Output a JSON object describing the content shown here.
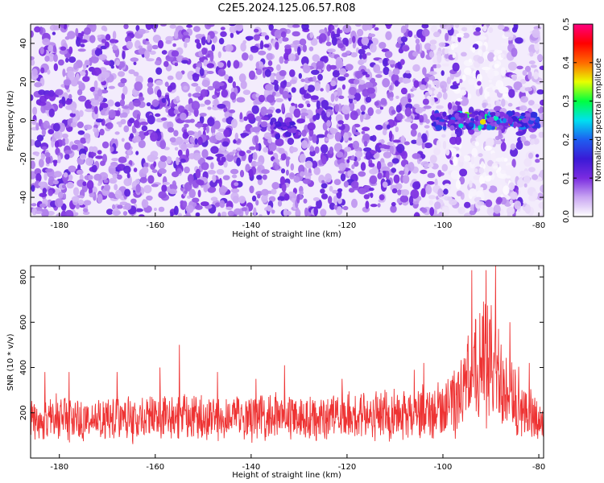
{
  "title": "C2E5.2024.125.06.57.R08",
  "chart_data": [
    {
      "type": "heatmap",
      "xlabel": "Height of straight line (km)",
      "ylabel": "Frequency (Hz)",
      "xlim": [
        -186,
        -79
      ],
      "ylim": [
        -50,
        50
      ],
      "x_ticks": [
        -180,
        -160,
        -140,
        -120,
        -100,
        -80
      ],
      "y_ticks": [
        -40,
        -20,
        0,
        20,
        40
      ],
      "x_tick_labels": [
        "-180",
        "-160",
        "-140",
        "-120",
        "-100",
        "-80"
      ],
      "y_tick_labels": [
        "-40",
        "-20",
        "0",
        "20",
        "40"
      ],
      "colorbar": {
        "label": "Normalized spectral amplitude",
        "range": [
          0.0,
          0.5
        ],
        "ticks": [
          0.0,
          0.1,
          0.2,
          0.3,
          0.4,
          0.5
        ],
        "tick_labels": [
          "0.0",
          "0.1",
          "0.2",
          "0.3",
          "0.4",
          "0.5"
        ],
        "colormap": [
          "#ffffff",
          "#c9a6f2",
          "#7a2be0",
          "#3a1ad6",
          "#1e5ef0",
          "#00e0f0",
          "#00ff40",
          "#e8ff00",
          "#ff6a00",
          "#ff0000",
          "#ff0080"
        ]
      },
      "features": [
        {
          "x_range": [
            -102,
            -80
          ],
          "y_center": 0,
          "y_halfwidth": 4,
          "amplitude_max": 0.4
        },
        {
          "x_range": [
            -136,
            -130
          ],
          "y_center": -5,
          "y_halfwidth": 4,
          "amplitude_max": 0.15
        }
      ]
    },
    {
      "type": "line",
      "xlabel": "Height of straight line (km)",
      "ylabel": "SNR (10 * v/v)",
      "xlim": [
        -186,
        -79
      ],
      "ylim": [
        0,
        850
      ],
      "x_ticks": [
        -180,
        -160,
        -140,
        -120,
        -100,
        -80
      ],
      "y_ticks": [
        200,
        400,
        600,
        800
      ],
      "x_tick_labels": [
        "-180",
        "-160",
        "-140",
        "-120",
        "-100",
        "-80"
      ],
      "y_tick_labels": [
        "200",
        "400",
        "600",
        "800"
      ],
      "color": "#ee3333",
      "envelope": [
        {
          "x": -186,
          "low": 60,
          "high": 290
        },
        {
          "x": -170,
          "low": 60,
          "high": 300
        },
        {
          "x": -150,
          "low": 60,
          "high": 300
        },
        {
          "x": -130,
          "low": 60,
          "high": 300
        },
        {
          "x": -110,
          "low": 60,
          "high": 310
        },
        {
          "x": -100,
          "low": 60,
          "high": 360
        },
        {
          "x": -96,
          "low": 80,
          "high": 500
        },
        {
          "x": -93,
          "low": 100,
          "high": 720
        },
        {
          "x": -90,
          "low": 100,
          "high": 740
        },
        {
          "x": -87,
          "low": 90,
          "high": 560
        },
        {
          "x": -84,
          "low": 70,
          "high": 420
        },
        {
          "x": -80,
          "low": 50,
          "high": 260
        }
      ],
      "peaks": [
        {
          "x": -183,
          "y": 380
        },
        {
          "x": -178,
          "y": 380
        },
        {
          "x": -168,
          "y": 380
        },
        {
          "x": -159,
          "y": 400
        },
        {
          "x": -155,
          "y": 500
        },
        {
          "x": -147,
          "y": 380
        },
        {
          "x": -139,
          "y": 350
        },
        {
          "x": -133,
          "y": 410
        },
        {
          "x": -121,
          "y": 350
        },
        {
          "x": -106,
          "y": 390
        },
        {
          "x": -104,
          "y": 420
        },
        {
          "x": -94,
          "y": 830
        },
        {
          "x": -91,
          "y": 830
        },
        {
          "x": -89,
          "y": 850
        },
        {
          "x": -86,
          "y": 600
        },
        {
          "x": -82,
          "y": 420
        }
      ]
    }
  ]
}
